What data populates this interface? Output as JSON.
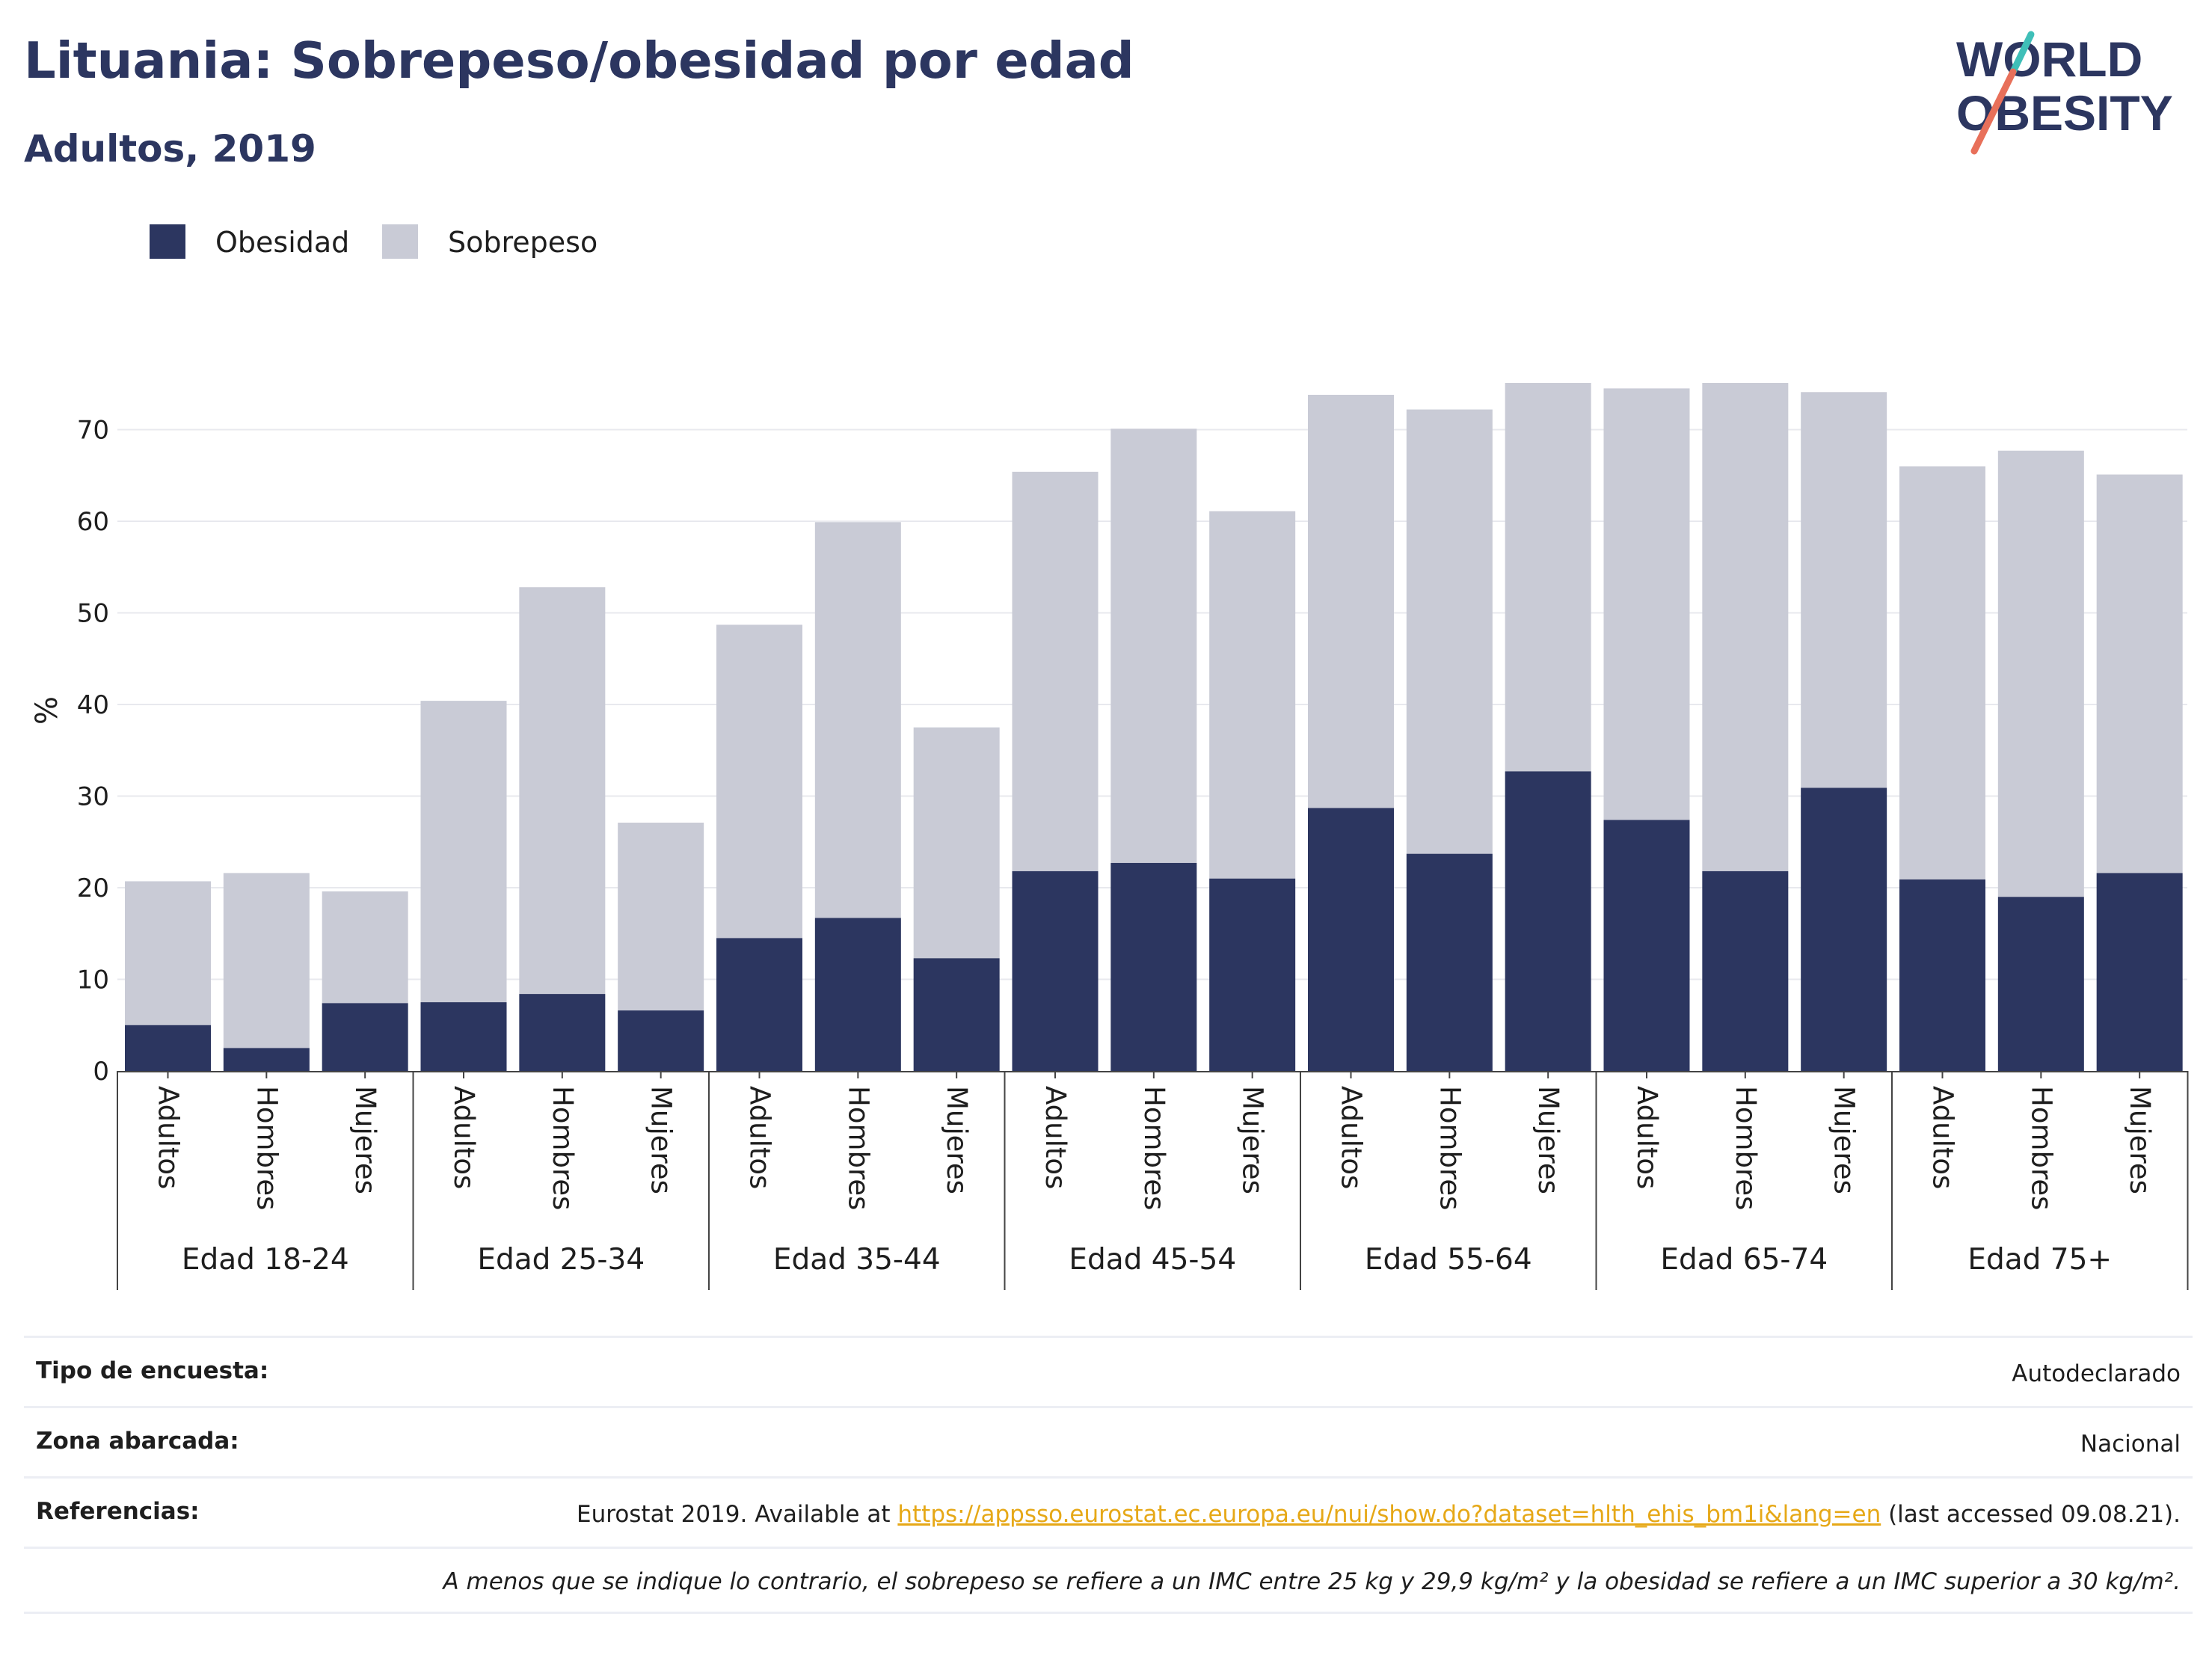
{
  "header": {
    "title": "Lituania: Sobrepeso/obesidad por edad",
    "subtitle": "Adultos, 2019"
  },
  "logo": {
    "line1": "WORLD",
    "line2": "OBESITY"
  },
  "colors": {
    "obesidad": "#2c3660",
    "sobrepeso": "#c9cbd6",
    "title": "#2c3660",
    "link": "#e6a817"
  },
  "chart_data": {
    "type": "bar",
    "stacked": true,
    "ylabel": "%",
    "xlabel": "",
    "ylim": [
      0,
      80
    ],
    "yticks": [
      0,
      10,
      20,
      30,
      40,
      50,
      60,
      70
    ],
    "grid": true,
    "legend_position": "top-left",
    "groups": [
      "Edad 18-24",
      "Edad 25-34",
      "Edad 35-44",
      "Edad 45-54",
      "Edad 55-64",
      "Edad 65-74",
      "Edad 75+"
    ],
    "subcategories": [
      "Adultos",
      "Hombres",
      "Mujeres"
    ],
    "series": [
      {
        "name": "Obesidad",
        "values": [
          5.0,
          2.5,
          7.4,
          7.5,
          8.4,
          6.6,
          14.5,
          16.7,
          12.3,
          21.8,
          22.7,
          21.0,
          28.7,
          23.7,
          32.7,
          27.4,
          21.8,
          30.9,
          20.9,
          19.0,
          21.6
        ]
      },
      {
        "name": "Sobrepeso",
        "values": [
          15.7,
          19.1,
          12.2,
          32.9,
          44.4,
          20.5,
          34.2,
          43.2,
          25.2,
          43.6,
          47.4,
          40.1,
          45.1,
          48.5,
          42.4,
          47.1,
          53.3,
          43.2,
          45.1,
          48.7,
          43.5
        ]
      }
    ]
  },
  "info": {
    "rows": [
      {
        "label": "Tipo de encuesta:",
        "value": "Autodeclarado"
      },
      {
        "label": "Zona abarcada:",
        "value": "Nacional"
      }
    ],
    "references": {
      "label": "Referencias:",
      "prefix": "Eurostat 2019. Available at ",
      "link": "https://appsso.eurostat.ec.europa.eu/nui/show.do?dataset=hlth_ehis_bm1i&lang=en",
      "suffix": " (last accessed 09.08.21)."
    },
    "note": "A menos que se indique lo contrario, el sobrepeso se refiere a un IMC entre 25 kg y 29,9 kg/m² y la obesidad se refiere a un IMC superior a 30 kg/m²."
  }
}
